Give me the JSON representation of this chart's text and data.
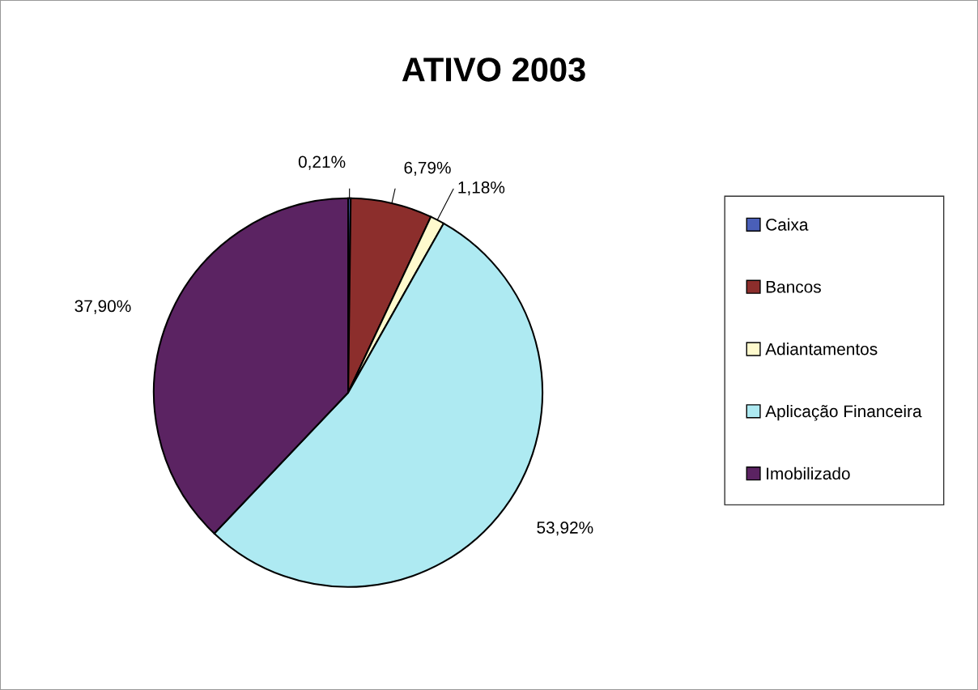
{
  "chart_data": {
    "type": "pie",
    "title": "ATIVO 2003",
    "categories": [
      "Caixa",
      "Bancos",
      "Adiantamentos",
      "Aplicação Financeira",
      "Imobilizado"
    ],
    "values": [
      0.21,
      6.79,
      1.18,
      53.92,
      37.9
    ],
    "value_labels": [
      "0,21%",
      "6,79%",
      "1,18%",
      "53,92%",
      "37,90%"
    ],
    "colors": [
      "#4a5fb8",
      "#8c2e2c",
      "#fffacd",
      "#aeeaf2",
      "#5b2362"
    ],
    "legend": "right"
  }
}
